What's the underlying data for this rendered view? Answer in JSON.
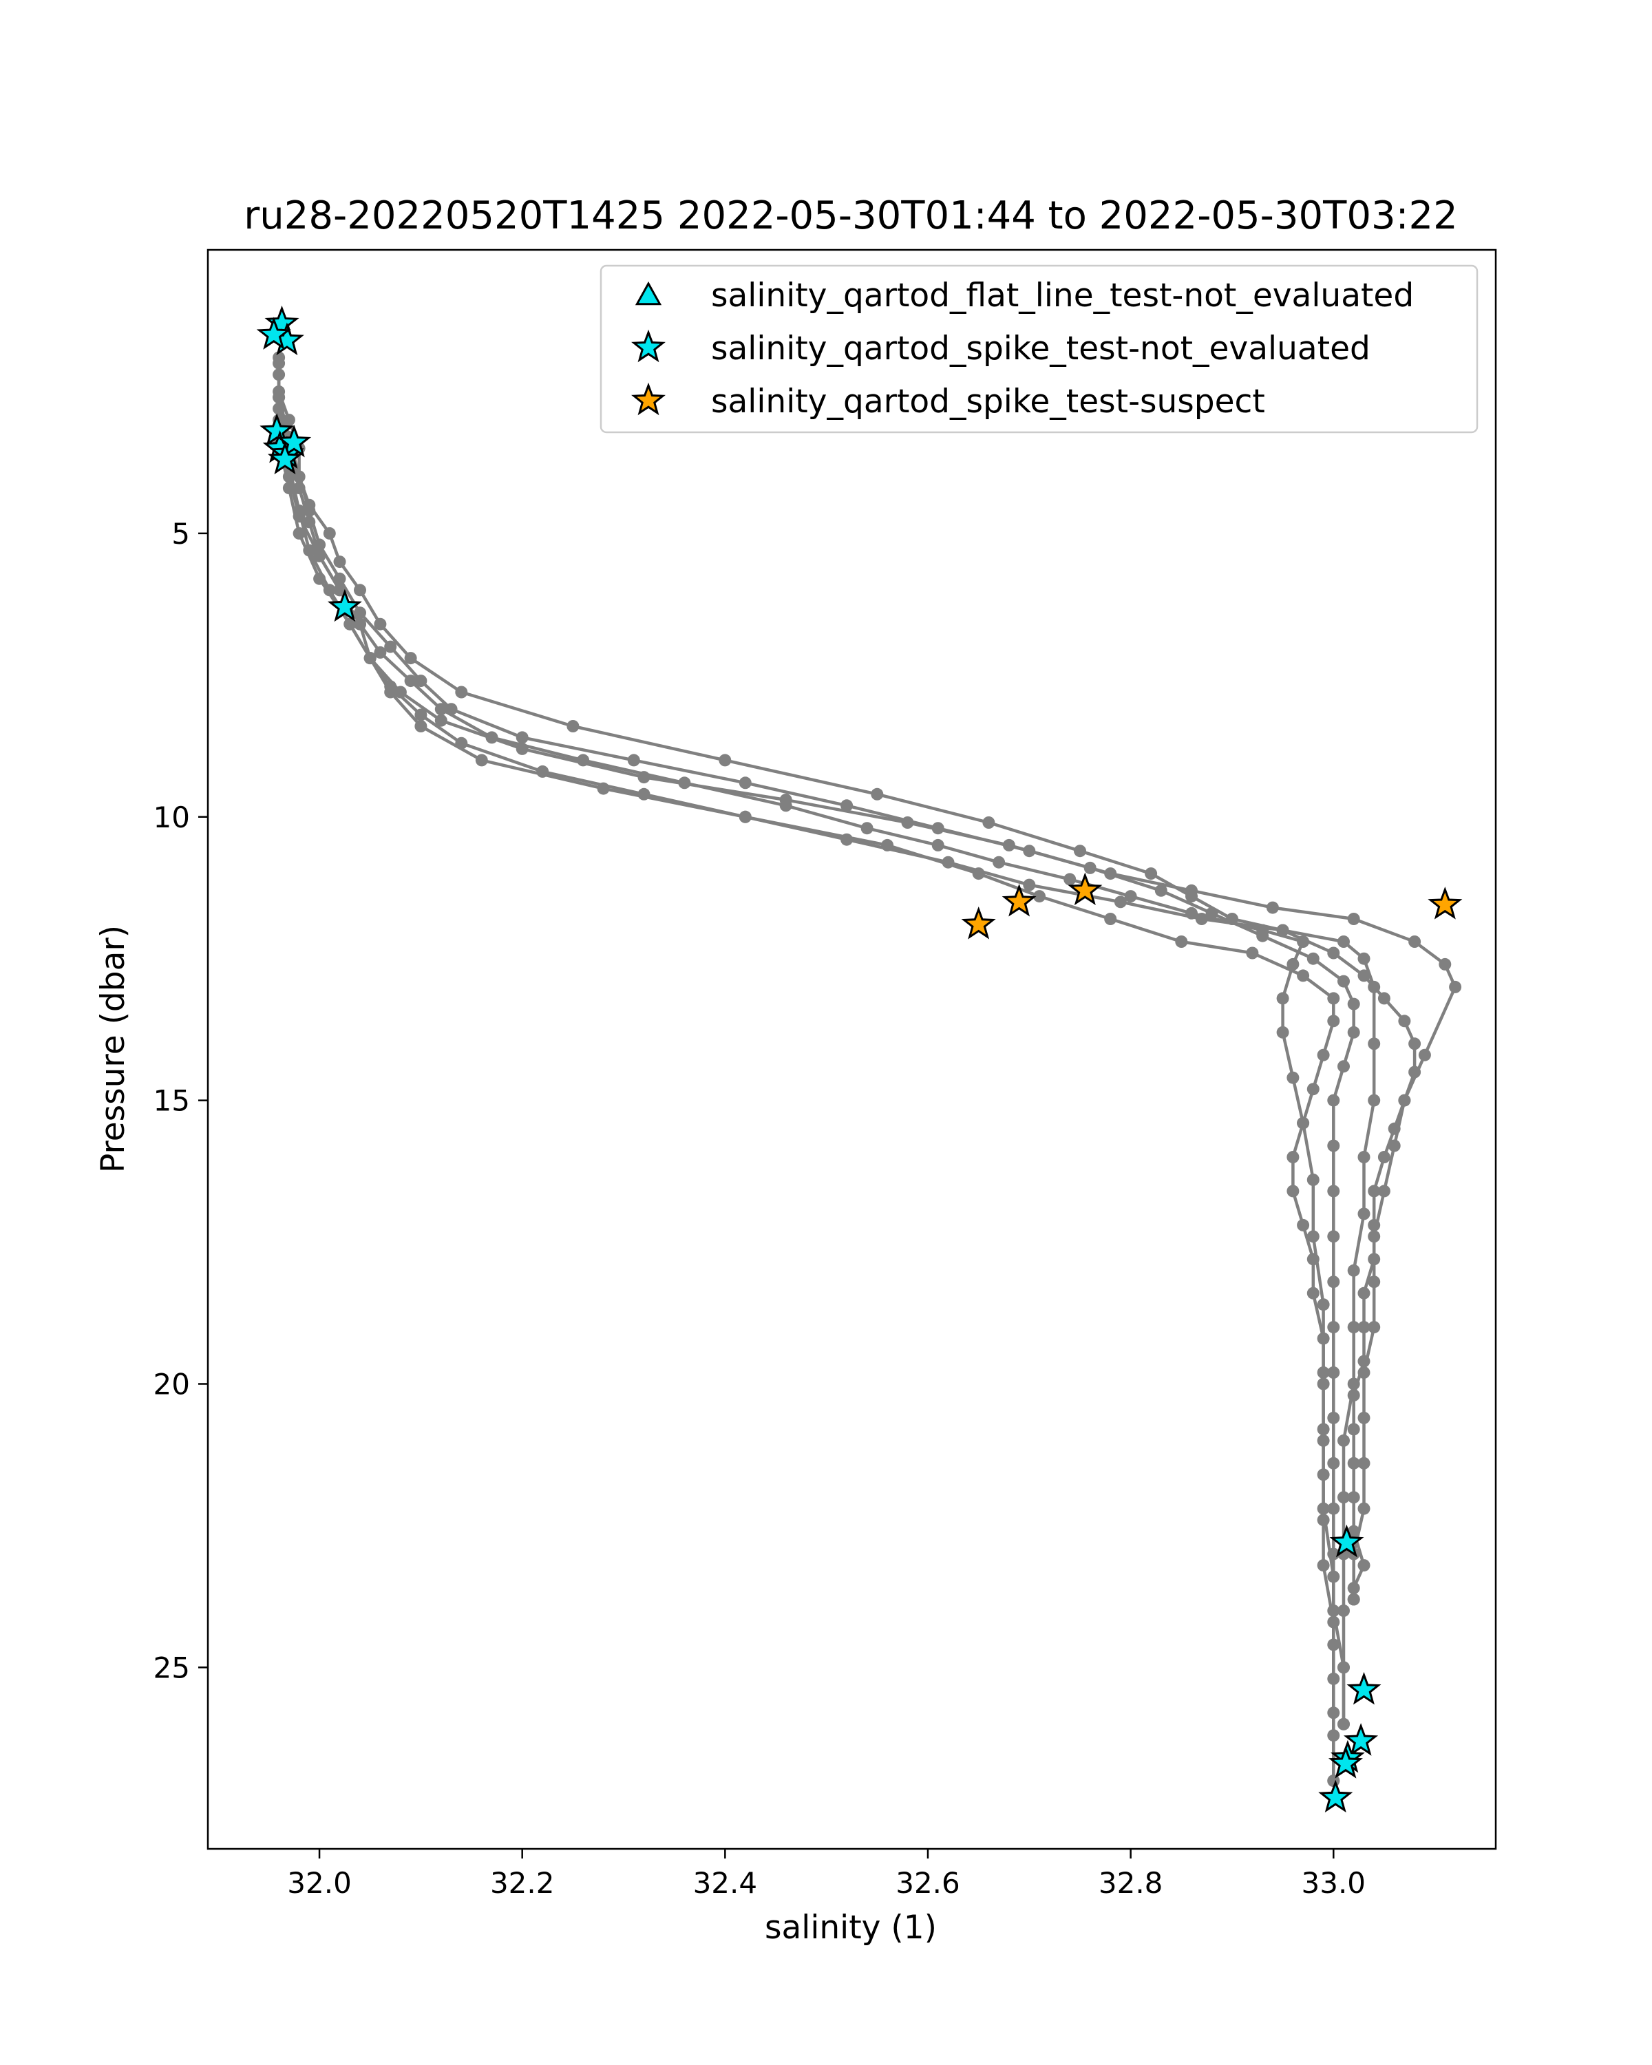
{
  "chart_data": {
    "type": "line",
    "title": "ru28-20220520T1425 2022-05-30T01:44 to 2022-05-30T03:22",
    "xlabel": "salinity (1)",
    "ylabel": "Pressure (dbar)",
    "xlim": [
      31.89,
      33.16
    ],
    "ylim": [
      28.2,
      0.0
    ],
    "y_inverted": true,
    "grid": false,
    "legend_position": "upper right",
    "x_ticks": [
      {
        "value": 32.0,
        "label": "32.0"
      },
      {
        "value": 32.2,
        "label": "32.2"
      },
      {
        "value": 32.4,
        "label": "32.4"
      },
      {
        "value": 32.6,
        "label": "32.6"
      },
      {
        "value": 32.8,
        "label": "32.8"
      },
      {
        "value": 33.0,
        "label": "33.0"
      }
    ],
    "y_ticks": [
      {
        "value": 5,
        "label": "5"
      },
      {
        "value": 10,
        "label": "10"
      },
      {
        "value": 15,
        "label": "15"
      },
      {
        "value": 20,
        "label": "20"
      },
      {
        "value": 25,
        "label": "25"
      }
    ],
    "line_color": "#808080",
    "series": [
      {
        "x": [
          31.96,
          31.96,
          31.97,
          31.98,
          31.98,
          31.99,
          32.01,
          32.02,
          32.04,
          32.06,
          32.09,
          32.14,
          32.25,
          32.4,
          32.55,
          32.66,
          32.75,
          32.82,
          32.86,
          32.9,
          32.95,
          33.0,
          33.03,
          33.05,
          33.07,
          33.08,
          33.08,
          33.07,
          33.06,
          33.05,
          33.04,
          33.04,
          33.04,
          33.03,
          33.03,
          33.03,
          33.02,
          33.02,
          33.02,
          33.02,
          33.02,
          33.03,
          33.02,
          33.02
        ],
        "y": [
          1.9,
          2.5,
          3.0,
          3.5,
          4.0,
          4.5,
          5.0,
          5.5,
          6.0,
          6.6,
          7.2,
          7.8,
          8.4,
          9.0,
          9.6,
          10.1,
          10.6,
          11.0,
          11.4,
          11.8,
          12.0,
          12.4,
          12.8,
          13.2,
          13.6,
          14.0,
          14.5,
          15.0,
          15.5,
          16.0,
          16.6,
          17.2,
          17.8,
          18.4,
          19.0,
          19.6,
          20.2,
          20.8,
          21.4,
          22.0,
          22.6,
          23.2,
          23.6,
          23.8
        ]
      },
      {
        "x": [
          33.02,
          33.02,
          33.03,
          33.03,
          33.03,
          33.03,
          33.04,
          33.04,
          33.04,
          33.05,
          33.06,
          33.07,
          33.09,
          33.12,
          33.11,
          33.08,
          33.02,
          32.94,
          32.86,
          32.78,
          32.7,
          32.61,
          32.52,
          32.42,
          32.31,
          32.2,
          32.13,
          32.1,
          32.07,
          32.04,
          32.02,
          32.0,
          31.99,
          31.98,
          31.97,
          31.96
        ],
        "y": [
          23.8,
          23.0,
          22.2,
          21.4,
          20.6,
          19.8,
          19.0,
          18.2,
          17.4,
          16.6,
          15.8,
          15.0,
          14.2,
          13.0,
          12.6,
          12.2,
          11.8,
          11.6,
          11.3,
          11.0,
          10.6,
          10.2,
          9.8,
          9.4,
          9.0,
          8.6,
          8.1,
          7.6,
          7.0,
          6.4,
          5.8,
          5.2,
          4.6,
          4.0,
          3.3,
          2.6
        ]
      },
      {
        "x": [
          31.96,
          31.96,
          31.97,
          31.98,
          31.99,
          32.0,
          32.02,
          32.04,
          32.05,
          32.08,
          32.12,
          32.2,
          32.32,
          32.46,
          32.58,
          32.68,
          32.76,
          32.83,
          32.88,
          32.93,
          32.98,
          33.01,
          33.02,
          33.02,
          33.01,
          33.0,
          33.0,
          33.0,
          33.0,
          33.0,
          33.0,
          33.0,
          33.0,
          33.0,
          33.0,
          33.0,
          33.0,
          33.01,
          33.01
        ],
        "y": [
          2.0,
          2.8,
          3.5,
          4.2,
          4.8,
          5.4,
          6.0,
          6.6,
          7.2,
          7.8,
          8.3,
          8.8,
          9.3,
          9.7,
          10.1,
          10.5,
          10.9,
          11.3,
          11.7,
          12.1,
          12.5,
          12.9,
          13.3,
          13.8,
          14.4,
          15.0,
          15.8,
          16.6,
          17.4,
          18.2,
          19.0,
          19.8,
          20.6,
          21.4,
          22.2,
          23.0,
          24.0,
          25.0,
          26.0
        ]
      },
      {
        "x": [
          33.01,
          33.01,
          33.01,
          33.01,
          33.01,
          33.01,
          33.02,
          33.02,
          33.02,
          33.03,
          33.03,
          33.04,
          33.04,
          33.04,
          33.03,
          33.01,
          32.95,
          32.87,
          32.79,
          32.7,
          32.62,
          32.52,
          32.42,
          32.32,
          32.22,
          32.14,
          32.1,
          32.07,
          32.05,
          32.03,
          32.0,
          31.98,
          31.97,
          31.96,
          31.96
        ],
        "y": [
          26.0,
          25.0,
          24.0,
          23.0,
          22.0,
          21.0,
          20.0,
          19.0,
          18.0,
          17.0,
          16.0,
          15.0,
          14.0,
          13.0,
          12.5,
          12.2,
          12.0,
          11.8,
          11.5,
          11.2,
          10.8,
          10.4,
          10.0,
          9.6,
          9.2,
          8.7,
          8.2,
          7.7,
          7.2,
          6.6,
          5.8,
          5.0,
          4.2,
          3.4,
          2.6
        ]
      },
      {
        "x": [
          31.96,
          31.96,
          31.97,
          31.98,
          31.99,
          32.01,
          32.03,
          32.05,
          32.07,
          32.1,
          32.16,
          32.28,
          32.42,
          32.56,
          32.65,
          32.71,
          32.78,
          32.85,
          32.92,
          32.97,
          33.0,
          33.0,
          32.99,
          32.98,
          32.97,
          32.96,
          32.96,
          32.97,
          32.98,
          32.98,
          32.99,
          32.99,
          32.99,
          32.99,
          32.99,
          32.99,
          33.0,
          33.0,
          33.0,
          33.0
        ],
        "y": [
          2.2,
          3.0,
          3.8,
          4.6,
          5.3,
          6.0,
          6.6,
          7.2,
          7.8,
          8.4,
          9.0,
          9.5,
          10.0,
          10.5,
          11.0,
          11.4,
          11.8,
          12.2,
          12.4,
          12.8,
          13.2,
          13.6,
          14.2,
          14.8,
          15.4,
          16.0,
          16.6,
          17.2,
          17.8,
          18.4,
          19.2,
          20.0,
          20.8,
          21.6,
          22.4,
          23.2,
          24.2,
          25.2,
          26.2,
          27.0
        ]
      },
      {
        "x": [
          33.0,
          33.0,
          33.0,
          33.0,
          32.99,
          32.99,
          32.99,
          32.99,
          32.98,
          32.98,
          32.97,
          32.96,
          32.95,
          32.95,
          32.96,
          32.97,
          32.93,
          32.86,
          32.8,
          32.74,
          32.67,
          32.61,
          32.54,
          32.46,
          32.36,
          32.26,
          32.17,
          32.12,
          32.09,
          32.06,
          32.04,
          32.02,
          32.0,
          31.98,
          31.97,
          31.96
        ],
        "y": [
          27.0,
          25.8,
          24.6,
          23.4,
          22.2,
          21.0,
          19.8,
          18.6,
          17.4,
          16.4,
          15.4,
          14.6,
          13.8,
          13.2,
          12.6,
          12.2,
          12.0,
          11.7,
          11.4,
          11.1,
          10.8,
          10.5,
          10.2,
          9.8,
          9.4,
          9.0,
          8.6,
          8.1,
          7.6,
          7.1,
          6.6,
          6.0,
          5.4,
          4.7,
          4.0,
          3.3
        ]
      }
    ],
    "scatter_series": [
      {
        "name": "salinity_qartod_flat_line_test-not_evaluated",
        "marker": "triangle",
        "color": "#00e5ee",
        "x": [],
        "y": []
      },
      {
        "name": "salinity_qartod_spike_test-not_evaluated",
        "marker": "star",
        "color": "#00e5ee",
        "x": [
          31.963,
          31.968,
          31.955,
          31.958,
          31.961,
          31.968,
          31.975,
          31.966,
          32.025,
          33.013,
          33.03,
          33.027,
          33.014,
          33.012,
          33.002
        ],
        "y": [
          1.3,
          1.6,
          1.5,
          3.2,
          3.5,
          3.6,
          3.4,
          3.7,
          6.3,
          22.8,
          25.4,
          26.3,
          26.6,
          26.7,
          27.3
        ]
      },
      {
        "name": "salinity_qartod_spike_test-suspect",
        "marker": "star",
        "color": "#ffa500",
        "x": [
          32.755,
          32.69,
          32.65,
          33.11
        ],
        "y": [
          11.3,
          11.5,
          11.9,
          11.55
        ]
      }
    ]
  }
}
